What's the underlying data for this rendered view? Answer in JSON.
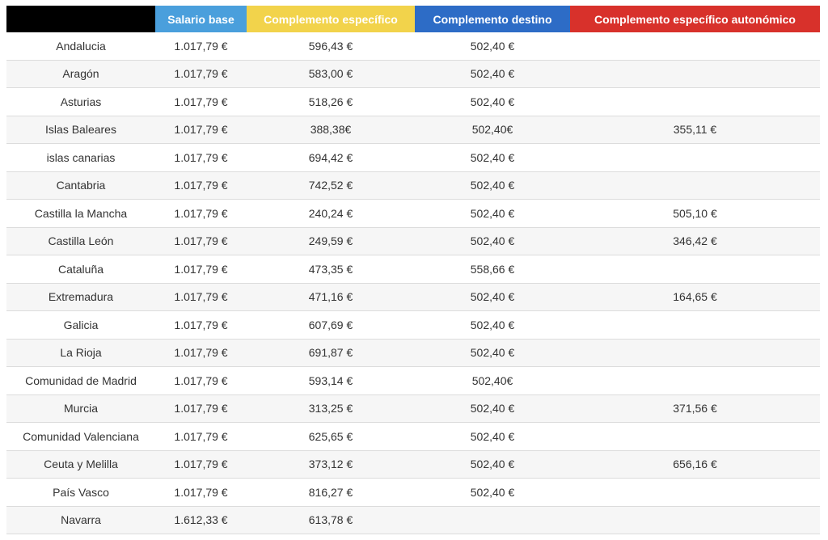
{
  "table": {
    "header": [
      "Salario base",
      "Complemento específico",
      "Complemento destino",
      "Complemento específico autonómico"
    ],
    "rows": [
      [
        "Andalucia",
        "1.017,79 €",
        "596,43 €",
        "502,40 €"
      ],
      [
        "Aragón",
        "1.017,79 €",
        "583,00 €",
        "502,40 €"
      ],
      [
        "Asturias",
        "1.017,79 €",
        "518,26 €",
        "502,40 €"
      ],
      [
        "Islas Baleares",
        "1.017,79 €",
        "388,38€",
        "502,40€",
        "355,11 €"
      ],
      [
        "islas canarias",
        "1.017,79 €",
        "694,42 €",
        "502,40 €"
      ],
      [
        "Cantabria",
        "1.017,79 €",
        "742,52 €",
        "502,40 €"
      ],
      [
        "Castilla la Mancha",
        "1.017,79 €",
        "240,24 €",
        "502,40 €",
        "505,10 €"
      ],
      [
        "Castilla León",
        "1.017,79 €",
        "249,59 €",
        "502,40 €",
        "346,42 €"
      ],
      [
        "Cataluña",
        "1.017,79 €",
        "473,35 €",
        "558,66 €"
      ],
      [
        "Extremadura",
        "1.017,79 €",
        "471,16 €",
        "502,40 €",
        "164,65 €"
      ],
      [
        "Galicia",
        "1.017,79 €",
        "607,69 €",
        "502,40 €"
      ],
      [
        "La Rioja",
        "1.017,79 €",
        "691,87 €",
        "502,40 €"
      ],
      [
        "Comunidad de Madrid",
        "1.017,79 €",
        "593,14 €",
        "502,40€"
      ],
      [
        "Murcia",
        "1.017,79 €",
        "313,25 €",
        "502,40 €",
        "371,56 €"
      ],
      [
        "Comunidad Valenciana",
        "1.017,79 €",
        "625,65 €",
        "502,40 €"
      ],
      [
        "Ceuta y Melilla",
        "1.017,79 €",
        "373,12 €",
        "502,40 €",
        "656,16 €"
      ],
      [
        "País Vasco",
        "1.017,79 €",
        "816,27 €",
        "502,40 €"
      ],
      [
        "Navarra",
        "1.612,33 €",
        "613,78 €"
      ]
    ]
  }
}
